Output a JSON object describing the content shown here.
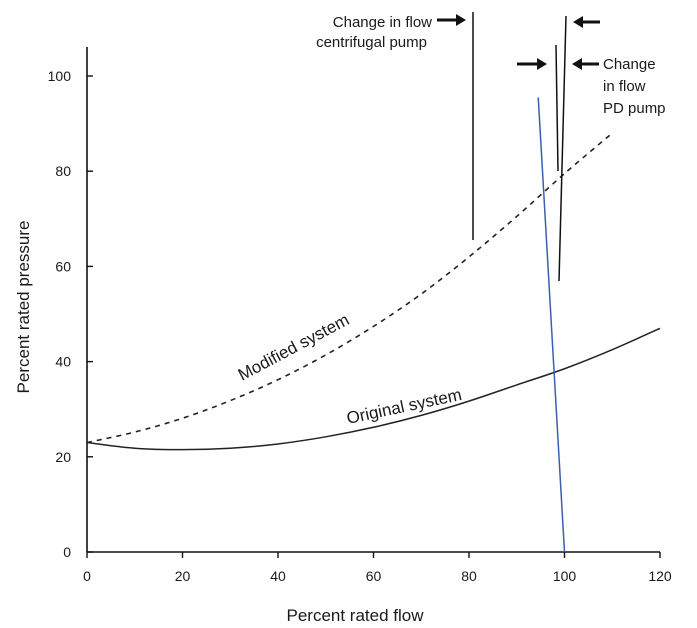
{
  "chart_data": {
    "type": "line",
    "xlabel": "Percent rated flow",
    "ylabel": "Percent rated pressure",
    "xlim": [
      0,
      120
    ],
    "ylim": [
      0,
      100
    ],
    "x_ticks": [
      0,
      20,
      40,
      60,
      80,
      100,
      120
    ],
    "y_ticks": [
      0,
      20,
      40,
      60,
      80,
      100
    ],
    "grid": false,
    "legend": "none",
    "series": [
      {
        "name": "Original system",
        "style": "solid",
        "color": "#222222",
        "x": [
          0,
          10,
          20,
          30,
          40,
          50,
          60,
          70,
          80,
          90,
          100,
          110,
          120
        ],
        "y": [
          23,
          21.8,
          21.5,
          21.8,
          22.7,
          24.2,
          26.2,
          28.7,
          31.7,
          35.1,
          38.5,
          42.5,
          47
        ]
      },
      {
        "name": "Modified system",
        "style": "dashed",
        "color": "#222222",
        "x": [
          0,
          10,
          20,
          30,
          40,
          50,
          60,
          70,
          80,
          90,
          100,
          110
        ],
        "y": [
          23,
          25.2,
          28.1,
          31.8,
          36.2,
          41.4,
          47.4,
          54.2,
          62,
          70.5,
          79.5,
          88
        ]
      },
      {
        "name": "",
        "style": "solid",
        "color": "#3a5fb0",
        "x": [
          94.5,
          100
        ],
        "y": [
          95.5,
          0
        ]
      }
    ],
    "annotations": [
      {
        "text_lines": [
          "Change in flow",
          "centrifugal pump"
        ],
        "bar_x": 80,
        "bar_y": [
          66,
          110
        ],
        "arrow": "right"
      },
      {
        "text_lines": [
          "Change",
          "in flow",
          "PD pump"
        ],
        "bar_x": [
          97,
          97.6
        ],
        "bar_y": [
          57,
          110
        ],
        "arrow": "both"
      }
    ]
  },
  "colors": {
    "axis": "#111111",
    "curve": "#222222",
    "pump_curve": "#3a5fb0",
    "annotation": "#111111"
  }
}
